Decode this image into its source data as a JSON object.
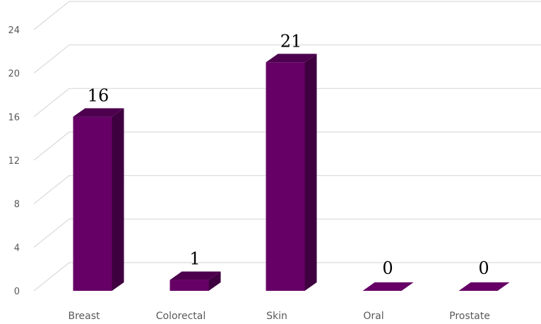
{
  "chart_data": {
    "type": "bar",
    "categories": [
      "Breast",
      "Colorectal",
      "Skin",
      "Oral",
      "Prostate"
    ],
    "values": [
      16,
      1,
      21,
      0,
      0
    ],
    "data_labels": [
      "16",
      "1",
      "21",
      "0",
      "0"
    ],
    "yticks": [
      "0",
      "4",
      "8",
      "12",
      "16",
      "20",
      "24"
    ],
    "ylim": [
      0,
      24
    ],
    "grid": true,
    "legend": "none",
    "style": "3d-column"
  },
  "colors": {
    "bar_front": "#660066",
    "bar_side": "#3f0040",
    "bar_top": "#4d004e",
    "grid": "#d9d9d9"
  }
}
